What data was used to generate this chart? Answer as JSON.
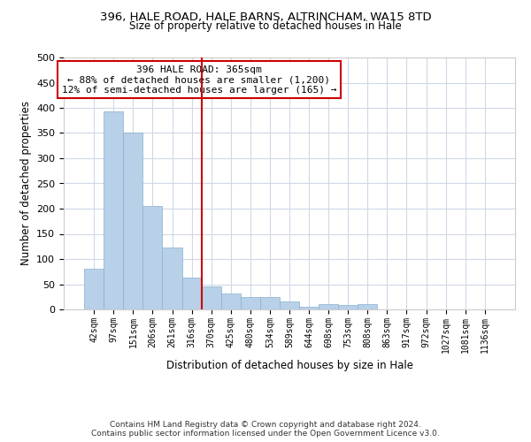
{
  "title": "396, HALE ROAD, HALE BARNS, ALTRINCHAM, WA15 8TD",
  "subtitle": "Size of property relative to detached houses in Hale",
  "xlabel": "Distribution of detached houses by size in Hale",
  "ylabel": "Number of detached properties",
  "bar_labels": [
    "42sqm",
    "97sqm",
    "151sqm",
    "206sqm",
    "261sqm",
    "316sqm",
    "370sqm",
    "425sqm",
    "480sqm",
    "534sqm",
    "589sqm",
    "644sqm",
    "698sqm",
    "753sqm",
    "808sqm",
    "863sqm",
    "917sqm",
    "972sqm",
    "1027sqm",
    "1081sqm",
    "1136sqm"
  ],
  "bar_values": [
    80,
    393,
    350,
    205,
    123,
    63,
    45,
    31,
    24,
    25,
    15,
    5,
    10,
    9,
    10,
    0,
    0,
    0,
    0,
    0,
    0
  ],
  "bar_color": "#b8d0e8",
  "bar_edge_color": "#8ab0d0",
  "vline_index": 6,
  "vline_color": "#cc0000",
  "annotation_title": "396 HALE ROAD: 365sqm",
  "annotation_line1": "← 88% of detached houses are smaller (1,200)",
  "annotation_line2": "12% of semi-detached houses are larger (165) →",
  "annotation_box_color": "#ffffff",
  "annotation_box_edge": "#cc0000",
  "ylim": [
    0,
    500
  ],
  "yticks": [
    0,
    50,
    100,
    150,
    200,
    250,
    300,
    350,
    400,
    450,
    500
  ],
  "footer1": "Contains HM Land Registry data © Crown copyright and database right 2024.",
  "footer2": "Contains public sector information licensed under the Open Government Licence v3.0.",
  "background_color": "#ffffff",
  "grid_color": "#d0d8e8"
}
